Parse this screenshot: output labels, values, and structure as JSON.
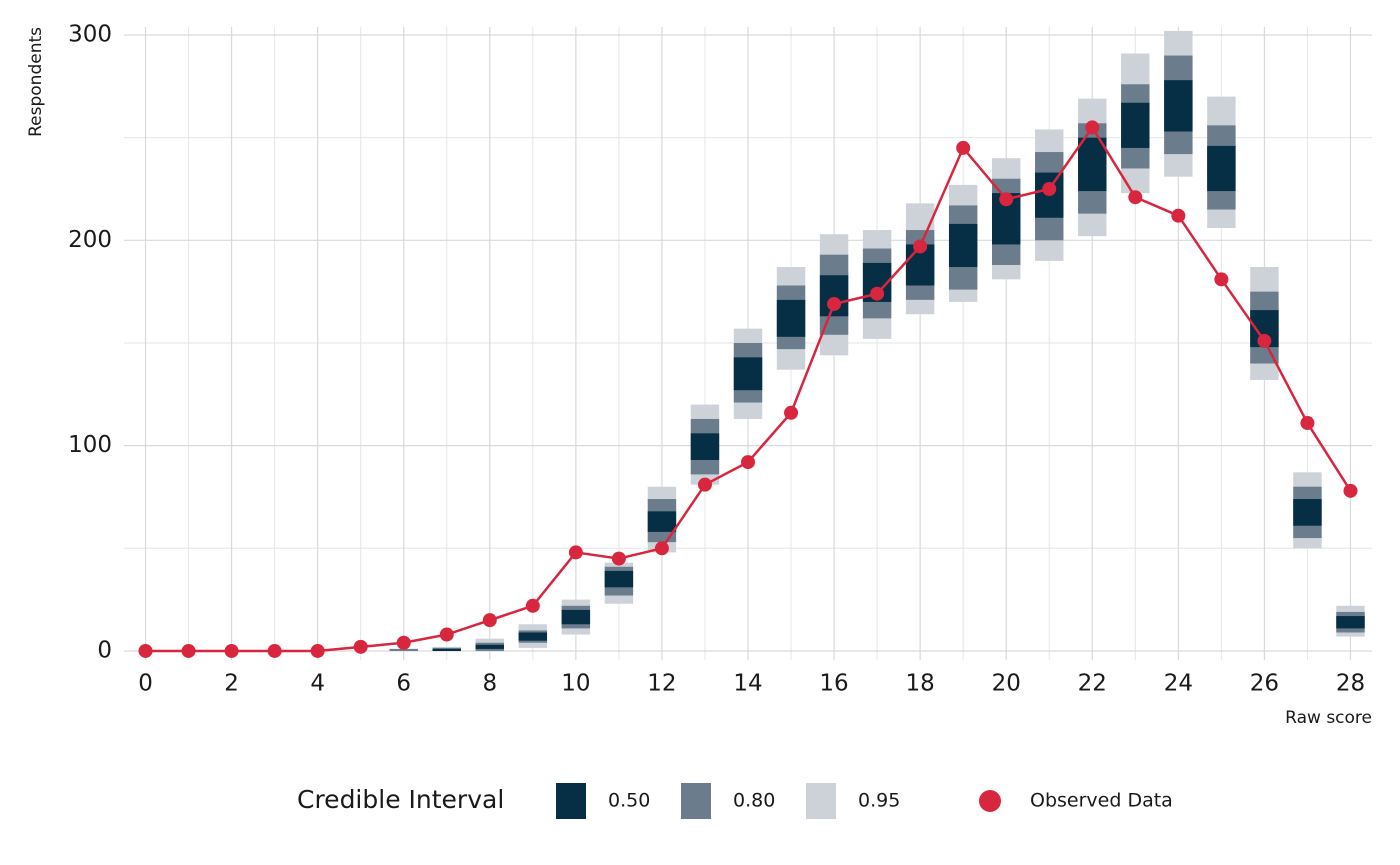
{
  "chart_data": {
    "type": "ppc_intervals",
    "x_label": "Raw score",
    "y_label": "Respondents",
    "x": [
      0,
      1,
      2,
      3,
      4,
      5,
      6,
      7,
      8,
      9,
      10,
      11,
      12,
      13,
      14,
      15,
      16,
      17,
      18,
      19,
      20,
      21,
      22,
      23,
      24,
      25,
      26,
      27,
      28
    ],
    "legend_title": "Credible Interval",
    "intervals": [
      {
        "name": "0.50",
        "color": "#062e45",
        "low": [
          0,
          0,
          0,
          0,
          0,
          0,
          0,
          0,
          1,
          5,
          13,
          31,
          58,
          93,
          127,
          153,
          163,
          170,
          178,
          187,
          198,
          211,
          224,
          245,
          253,
          224,
          148,
          61,
          11
        ],
        "high": [
          0,
          0,
          0,
          0,
          0,
          0,
          0,
          1,
          3,
          9,
          20,
          39,
          68,
          106,
          143,
          171,
          183,
          189,
          198,
          208,
          223,
          233,
          250,
          267,
          278,
          246,
          166,
          74,
          17
        ]
      },
      {
        "name": "0.80",
        "color": "#6b7d8c",
        "low": [
          0,
          0,
          0,
          0,
          0,
          0,
          0,
          0,
          0,
          4,
          11,
          27,
          53,
          86,
          121,
          147,
          154,
          162,
          171,
          176,
          188,
          200,
          213,
          235,
          242,
          215,
          140,
          55,
          9
        ],
        "high": [
          0,
          0,
          0,
          0,
          0,
          0,
          1,
          1.5,
          4,
          10,
          22,
          41,
          74,
          113,
          150,
          178,
          193,
          196,
          205,
          217,
          230,
          243,
          257,
          276,
          290,
          256,
          175,
          80,
          19
        ]
      },
      {
        "name": "0.95",
        "color": "#cdd2d9",
        "low": [
          0,
          0,
          0,
          0,
          0,
          0,
          0,
          0,
          0,
          1.5,
          8,
          23,
          48,
          81,
          113,
          137,
          144,
          152,
          164,
          170,
          181,
          190,
          202,
          223,
          231,
          206,
          132,
          50,
          7
        ],
        "high": [
          0,
          0,
          0,
          0,
          0,
          0,
          1,
          2,
          6,
          13,
          25,
          43,
          80,
          120,
          157,
          187,
          203,
          205,
          218,
          227,
          240,
          254,
          269,
          291,
          302,
          270,
          187,
          87,
          22
        ]
      }
    ],
    "series": [
      {
        "name": "Observed Data",
        "color": "#d7263d",
        "values": [
          0,
          0,
          0,
          0,
          0,
          2,
          4,
          8,
          15,
          22,
          48,
          45,
          50,
          81,
          92,
          116,
          169,
          174,
          197,
          245,
          220,
          225,
          255,
          221,
          212,
          181,
          151,
          111,
          78
        ]
      }
    ],
    "xlim": [
      -0.5,
      28.5
    ],
    "ylim": [
      -4.4,
      303.9
    ],
    "xticks": [
      0,
      2,
      4,
      6,
      8,
      10,
      12,
      14,
      16,
      18,
      20,
      22,
      24,
      26,
      28
    ],
    "yticks": [
      0,
      100,
      200,
      300
    ],
    "minor_xticks": [
      1,
      3,
      5,
      7,
      9,
      11,
      13,
      15,
      17,
      19,
      21,
      23,
      25,
      27
    ],
    "minor_yticks": [
      50,
      150,
      250
    ],
    "grid": true,
    "legend": "bottom"
  }
}
